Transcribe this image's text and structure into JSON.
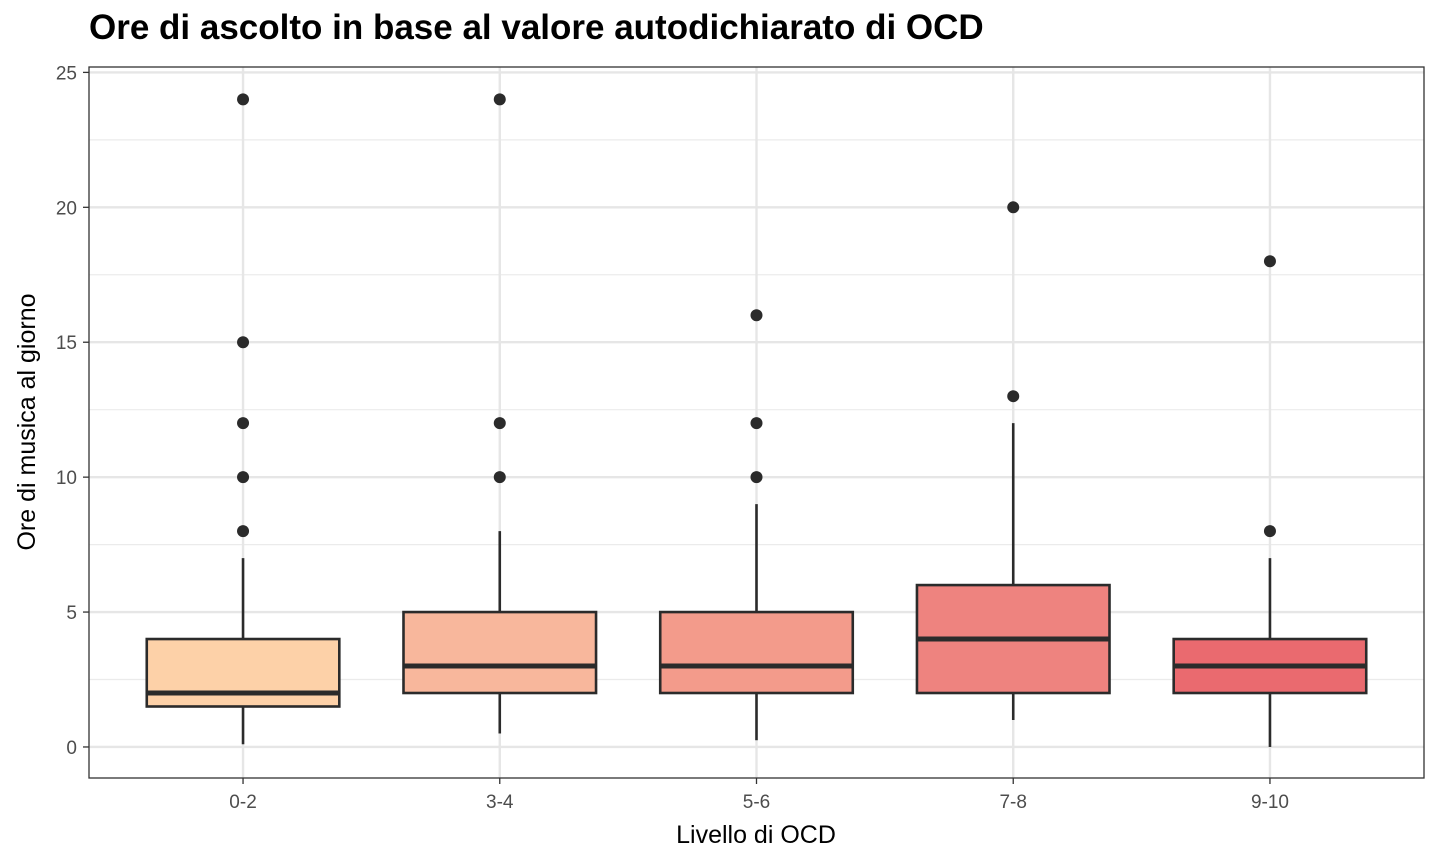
{
  "chart_data": {
    "type": "box",
    "title": "Ore di ascolto in base al valore autodichiarato di OCD",
    "xlabel": "Livello di OCD",
    "ylabel": "Ore di musica al giorno",
    "ylim": [
      -1.15,
      25.2
    ],
    "yticks": [
      0,
      5,
      10,
      15,
      20,
      25
    ],
    "grid": true,
    "legend": "none",
    "categories": [
      "0-2",
      "3-4",
      "5-6",
      "7-8",
      "9-10"
    ],
    "boxes": [
      {
        "category": "0-2",
        "whisker_low": 0.1,
        "q1": 1.5,
        "median": 2,
        "q3": 4,
        "whisker_high": 7,
        "outliers": [
          8,
          10,
          12,
          15,
          24
        ],
        "color": "#FDD1A8"
      },
      {
        "category": "3-4",
        "whisker_low": 0.5,
        "q1": 2,
        "median": 3,
        "q3": 5,
        "whisker_high": 8,
        "outliers": [
          10,
          12,
          24
        ],
        "color": "#F8B79C"
      },
      {
        "category": "5-6",
        "whisker_low": 0.25,
        "q1": 2,
        "median": 3,
        "q3": 5,
        "whisker_high": 9,
        "outliers": [
          10,
          12,
          16
        ],
        "color": "#F39B8B"
      },
      {
        "category": "7-8",
        "whisker_low": 1,
        "q1": 2,
        "median": 4,
        "q3": 6,
        "whisker_high": 12,
        "outliers": [
          13,
          20
        ],
        "color": "#EE837F"
      },
      {
        "category": "9-10",
        "whisker_low": 0,
        "q1": 2,
        "median": 3,
        "q3": 4,
        "whisker_high": 7,
        "outliers": [
          8,
          18
        ],
        "color": "#EA6A6F"
      }
    ]
  }
}
